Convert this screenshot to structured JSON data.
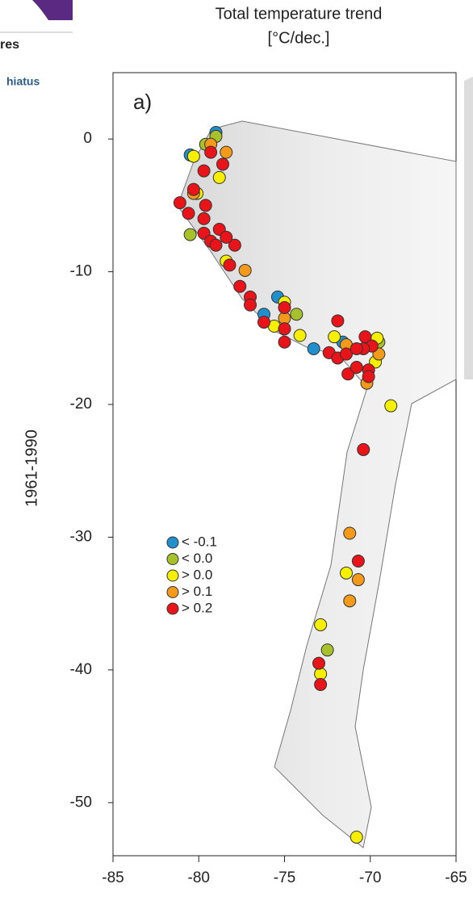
{
  "page_fragments": {
    "left_label_1": "res",
    "left_label_2": "hiatus"
  },
  "chart_data": {
    "type": "scatter",
    "title": "Total temperature trend",
    "subtitle": "[°C/dec.]",
    "panel_label": "a)",
    "ylabel": "1961-1990",
    "xlim": [
      -85,
      -65
    ],
    "ylim": [
      -54,
      5
    ],
    "xticks": [
      -85,
      -80,
      -75,
      -70,
      -65
    ],
    "yticks": [
      0,
      -10,
      -20,
      -30,
      -40,
      -50
    ],
    "legend": "lower left",
    "series": [
      {
        "name": "< -0.1",
        "color": "#1f8fce",
        "x": [
          -79.0,
          -80.5,
          -76.2,
          -75.4,
          -73.3,
          -71.6
        ],
        "values": [
          0.5,
          -1.2,
          -13.2,
          -11.9,
          -15.8,
          -15.3
        ]
      },
      {
        "name": "< 0.0",
        "color": "#a7c12a",
        "x": [
          -79.0,
          -79.6,
          -80.5,
          -74.3,
          -69.5,
          -72.5
        ],
        "values": [
          0.2,
          -0.4,
          -7.2,
          -13.2,
          -15.3,
          -38.5
        ]
      },
      {
        "name": "> 0.0",
        "color": "#f6f000",
        "x": [
          -80.3,
          -80.1,
          -78.8,
          -78.4,
          -75.0,
          -74.1,
          -75.6,
          -72.1,
          -69.6,
          -69.7,
          -68.8,
          -71.4,
          -72.9,
          -72.9,
          -70.8
        ],
        "values": [
          -1.3,
          -4.1,
          -2.9,
          -9.2,
          -12.3,
          -14.8,
          -14.1,
          -14.9,
          -15.0,
          -16.8,
          -20.1,
          -32.7,
          -36.6,
          -40.3,
          -52.6
        ]
      },
      {
        "name": "> 0.1",
        "color": "#f39a1b",
        "x": [
          -79.3,
          -80.3,
          -78.4,
          -77.3,
          -75.0,
          -71.4,
          -69.5,
          -70.2,
          -71.2,
          -70.7,
          -71.2
        ],
        "values": [
          -0.4,
          -4.1,
          -1.0,
          -9.9,
          -13.5,
          -15.5,
          -16.2,
          -18.4,
          -29.7,
          -33.2,
          -34.8
        ]
      },
      {
        "name": "> 0.2",
        "color": "#e8141a",
        "x": [
          -81.1,
          -80.6,
          -80.3,
          -79.7,
          -79.3,
          -78.6,
          -79.6,
          -79.7,
          -79.7,
          -79.3,
          -78.8,
          -79.0,
          -77.9,
          -78.4,
          -78.2,
          -77.6,
          -77.0,
          -77.0,
          -76.2,
          -75.0,
          -75.0,
          -75.0,
          -71.9,
          -72.4,
          -71.9,
          -71.4,
          -71.3,
          -70.8,
          -70.3,
          -69.9,
          -70.4,
          -70.8,
          -70.1,
          -70.1,
          -70.4,
          -70.7,
          -73.0,
          -72.9
        ],
        "values": [
          -4.8,
          -5.6,
          -3.8,
          -2.4,
          -1.0,
          -1.9,
          -5.0,
          -6.0,
          -7.1,
          -7.7,
          -6.8,
          -8.0,
          -8.0,
          -7.4,
          -9.5,
          -11.1,
          -11.9,
          -12.5,
          -13.8,
          -12.7,
          -14.3,
          -15.3,
          -13.7,
          -16.1,
          -16.5,
          -16.2,
          -17.7,
          -17.2,
          -14.9,
          -15.6,
          -15.8,
          -15.8,
          -17.4,
          -17.9,
          -23.4,
          -31.8,
          -39.5,
          -41.1
        ]
      }
    ]
  }
}
